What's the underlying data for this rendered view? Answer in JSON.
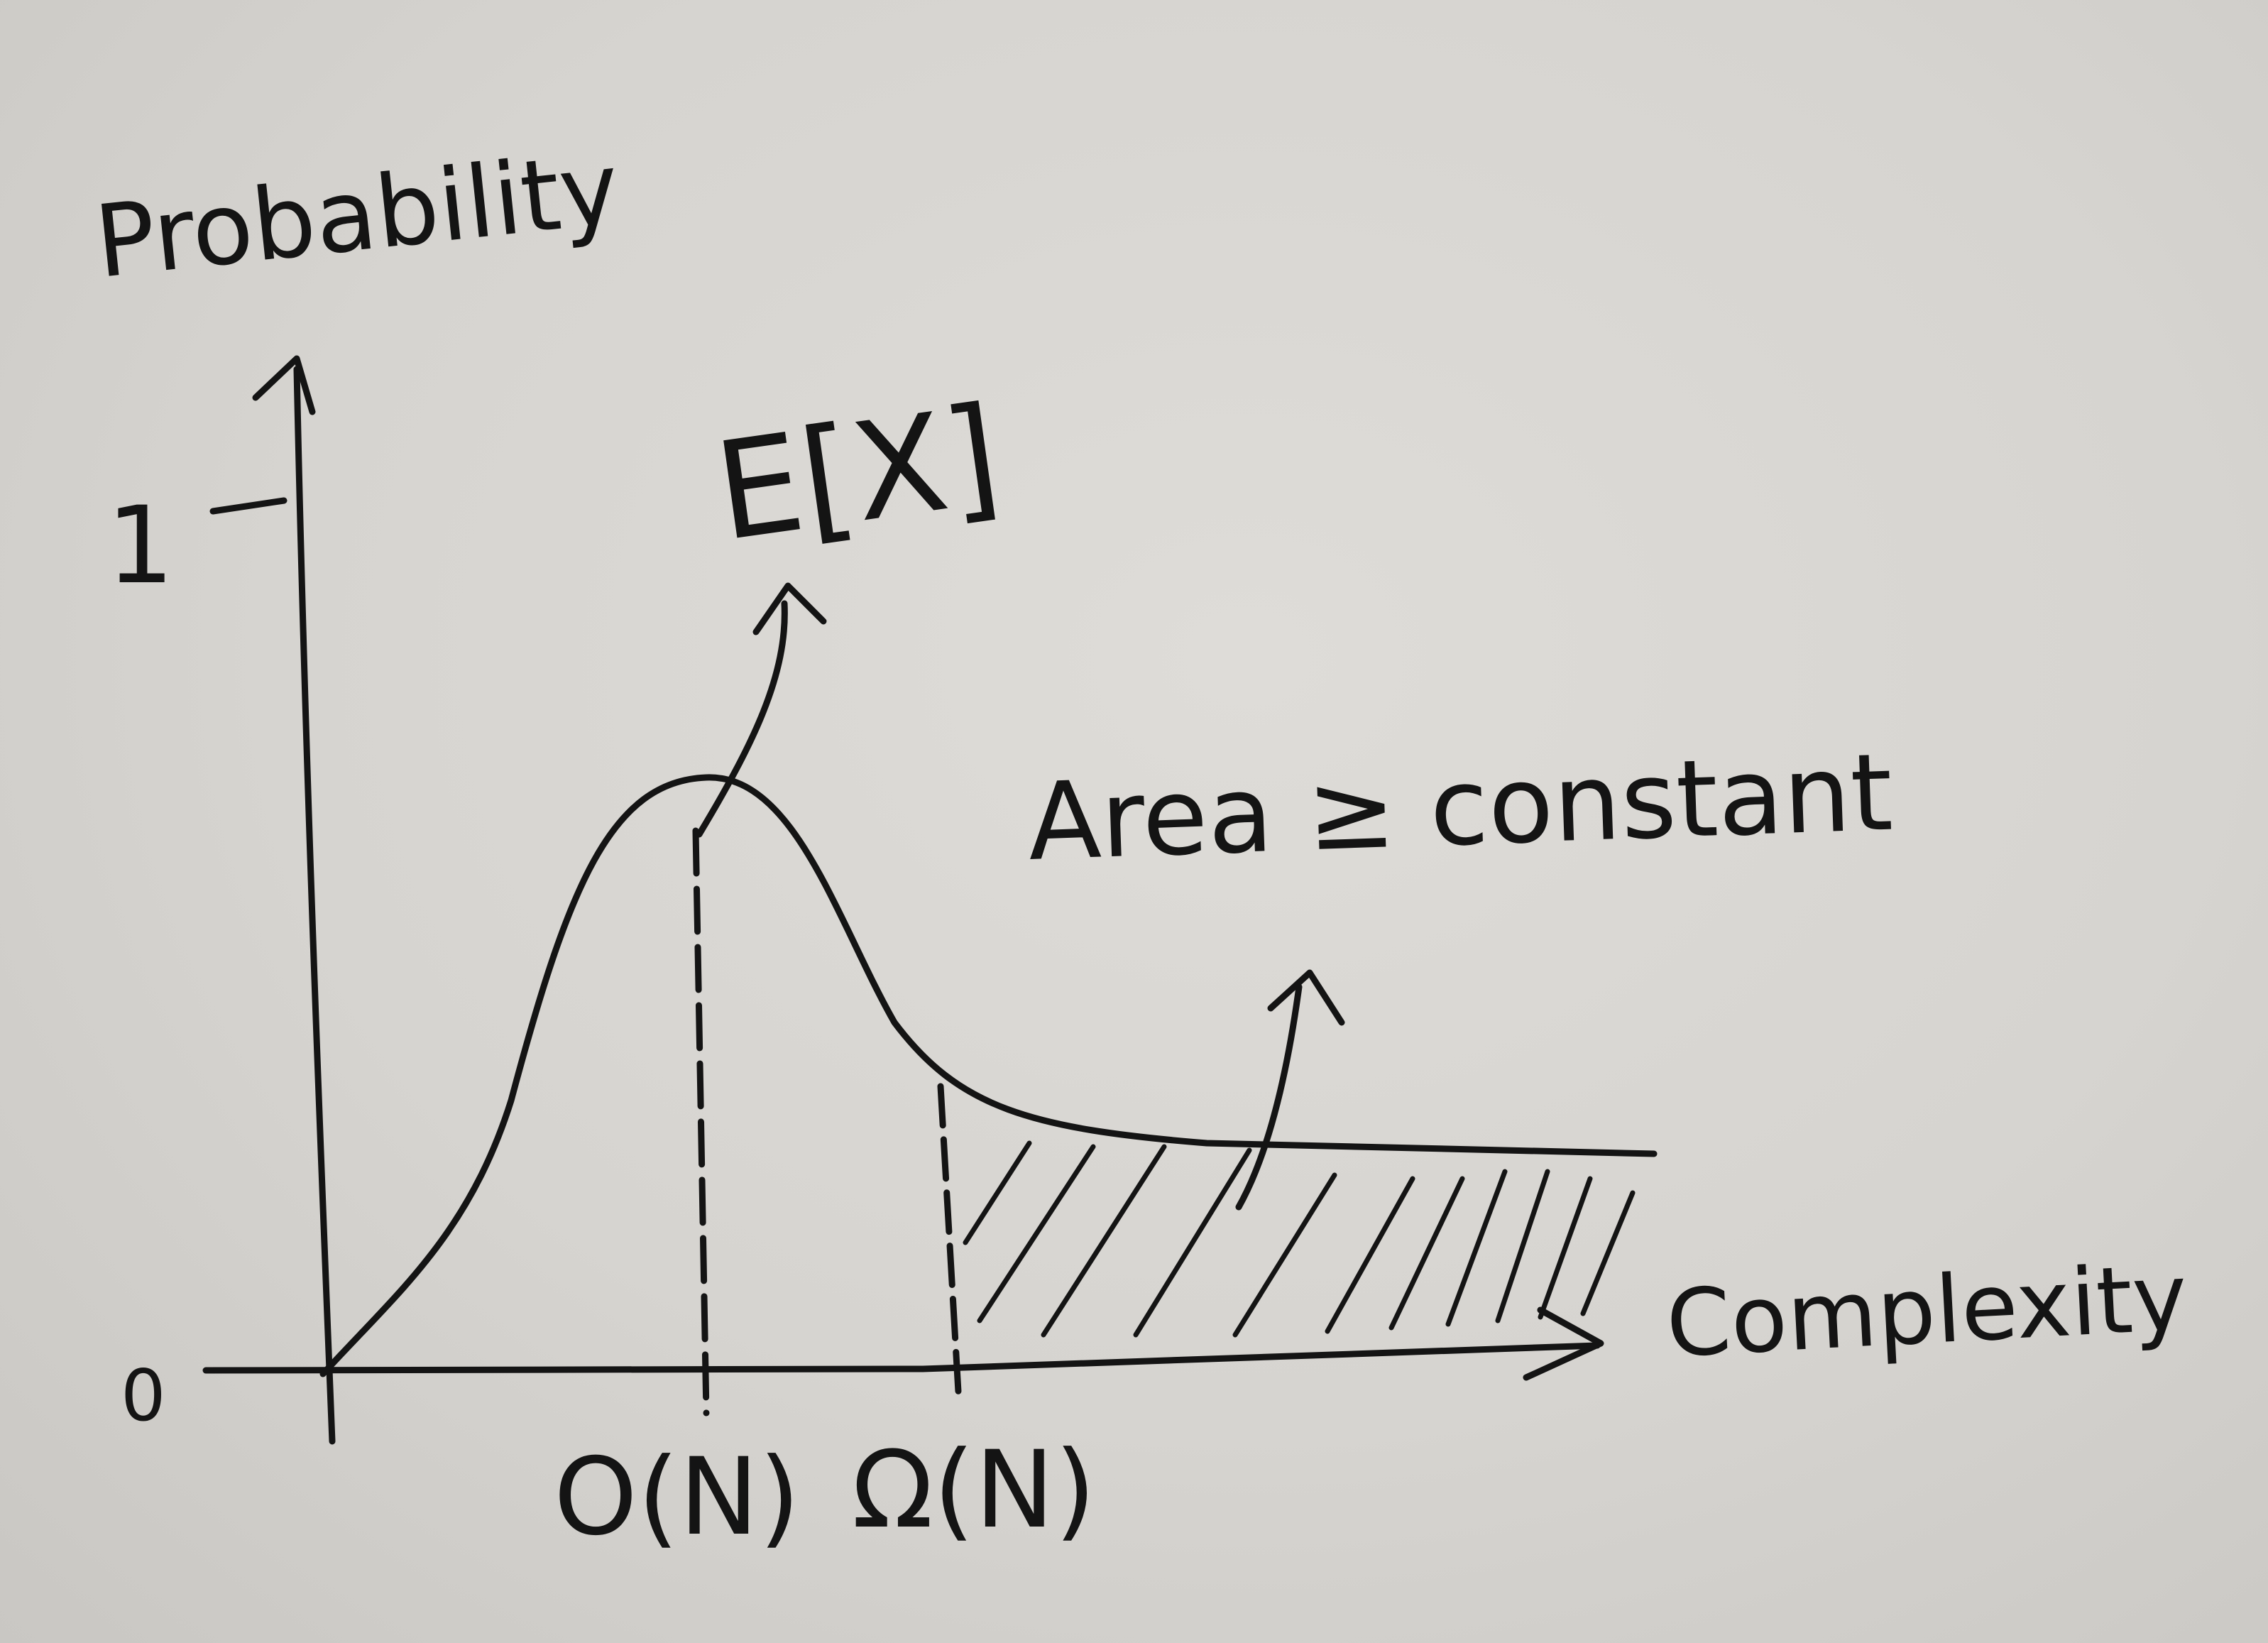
{
  "diagram": {
    "y_axis_label": "Probability",
    "x_axis_label": "Complexity",
    "y_tick_one": "1",
    "origin_label": "0",
    "mean_label": "E[X]",
    "area_label": "Area ≥ constant",
    "big_o_label": "O(N)",
    "big_omega_label": "Ω(N)"
  },
  "colors": {
    "ink": "#141414",
    "board": "#d6d4d0"
  }
}
